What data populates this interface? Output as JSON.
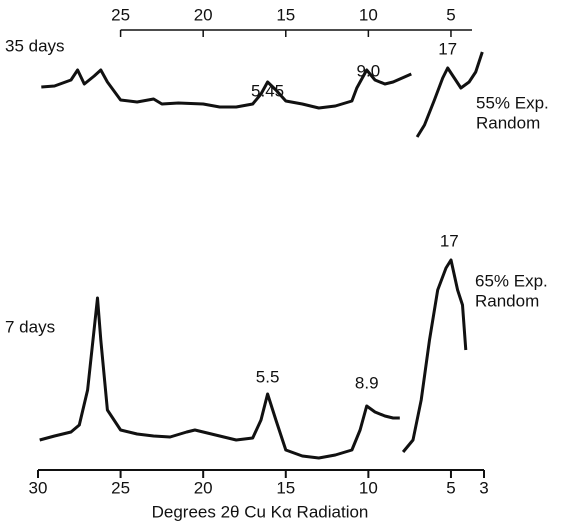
{
  "chart_data": {
    "type": "line",
    "x_label": "Degrees 2θ Cu Kα Radiation",
    "xlim": [
      30,
      3
    ],
    "xticks": [
      30,
      25,
      20,
      15,
      10,
      5,
      3
    ],
    "top_xticks": [
      25,
      20,
      15,
      10,
      5
    ],
    "ylim": [
      0,
      440
    ],
    "color": "#111111",
    "series": [
      {
        "name": "35 days",
        "note": [
          "55% Exp.",
          "Random"
        ],
        "x": [
          29.8,
          29,
          28,
          27.6,
          27.2,
          26.6,
          26.2,
          25.8,
          25,
          24,
          23,
          22.5,
          21.5,
          20,
          19,
          18,
          17,
          16.5,
          16.1,
          15.6,
          15,
          14,
          13,
          12,
          11,
          10.7,
          10.1,
          9.6,
          9,
          8.5,
          7.4,
          7.2,
          7.05,
          6.6,
          6.0,
          5.5,
          5.2,
          4.8,
          4.4,
          3.9,
          3.5,
          3.1
        ],
        "values": [
          393,
          394,
          400,
          410,
          396,
          404,
          410,
          398,
          380,
          378,
          381,
          376,
          377,
          376,
          373,
          373,
          376,
          386,
          398,
          390,
          379,
          376,
          372,
          374,
          379,
          392,
          410,
          400,
          396,
          398,
          406,
          null,
          343,
          355,
          380,
          402,
          412,
          402,
          392,
          398,
          408,
          428
        ]
      },
      {
        "name": "7 days",
        "note": [
          "65% Exp.",
          "Random"
        ],
        "x": [
          29.9,
          29,
          28,
          27.5,
          27,
          26.4,
          26.2,
          25.8,
          25,
          24,
          23,
          22,
          21,
          20.5,
          20,
          19,
          18,
          17,
          16.5,
          16.1,
          15.6,
          15,
          14,
          13,
          12,
          11,
          10.5,
          10.1,
          9.6,
          9,
          8.5,
          8.1,
          8.0,
          7.9,
          7.3,
          6.8,
          6.3,
          5.8,
          5.3,
          5.0,
          4.6,
          4.3,
          4.1
        ],
        "values": [
          40,
          44,
          48,
          55,
          90,
          182,
          140,
          70,
          50,
          46,
          44,
          43,
          48,
          50,
          48,
          44,
          40,
          42,
          60,
          86,
          60,
          30,
          24,
          22,
          25,
          30,
          50,
          74,
          68,
          64,
          62,
          62,
          null,
          28,
          40,
          80,
          140,
          190,
          212,
          220,
          190,
          175,
          130
        ]
      }
    ],
    "annotations": [
      {
        "text": "5.45",
        "x": 16.1,
        "y": 388
      },
      {
        "text": "9.0",
        "x": 10.0,
        "y": 408
      },
      {
        "text": "17",
        "x": 5.2,
        "y": 430
      },
      {
        "text": "5.5",
        "x": 16.1,
        "y": 102
      },
      {
        "text": "8.9",
        "x": 10.1,
        "y": 96
      },
      {
        "text": "17",
        "x": 5.1,
        "y": 238
      }
    ]
  }
}
